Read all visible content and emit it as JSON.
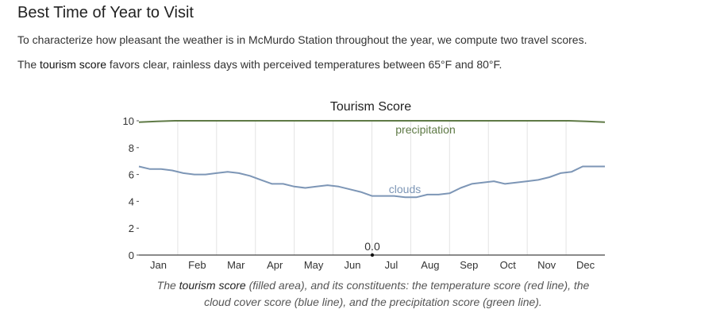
{
  "section": {
    "heading": "Best Time of Year to Visit",
    "p1": "To characterize how pleasant the weather is in McMurdo Station throughout the year, we compute two travel scores.",
    "p2_prefix": "The ",
    "p2_term": "tourism score",
    "p2_suffix": " favors clear, rainless days with perceived temperatures between 65°F and 80°F."
  },
  "caption": {
    "line1_prefix": "The ",
    "term": "tourism score",
    "line1_suffix": " (filled area), and its constituents: the temperature score (red line), the",
    "line2": "cloud cover score (blue line), and the precipitation score (green line)."
  },
  "chart_data": {
    "type": "line",
    "title": "Tourism Score",
    "xlabel": "",
    "ylabel": "",
    "ylim": [
      0,
      10
    ],
    "yticks": [
      "0",
      "2",
      "4",
      "6",
      "8",
      "10"
    ],
    "months": [
      "Jan",
      "Feb",
      "Mar",
      "Apr",
      "May",
      "Jun",
      "Jul",
      "Aug",
      "Sep",
      "Oct",
      "Nov",
      "Dec"
    ],
    "grid": "vertical",
    "series": [
      {
        "name": "precipitation",
        "color": "#5f7a46",
        "values": [
          9.9,
          9.95,
          10,
          10,
          10,
          10,
          10,
          10,
          10,
          10,
          10,
          10,
          10,
          10,
          10,
          10,
          10,
          10,
          10,
          10,
          10,
          10,
          10,
          10,
          10,
          9.95,
          9.9
        ]
      },
      {
        "name": "clouds",
        "color": "#7d96b6",
        "values": [
          6.6,
          6.4,
          6.4,
          6.3,
          6.1,
          6.0,
          6.0,
          6.1,
          6.2,
          6.1,
          5.9,
          5.6,
          5.3,
          5.3,
          5.1,
          5.0,
          5.1,
          5.2,
          5.1,
          4.9,
          4.7,
          4.4,
          4.4,
          4.4,
          4.3,
          4.3,
          4.5,
          4.5,
          4.6,
          5.0,
          5.3,
          5.4,
          5.5,
          5.3,
          5.4,
          5.5,
          5.6,
          5.8,
          6.1,
          6.2,
          6.6,
          6.6,
          6.6
        ]
      }
    ],
    "tourism_score": {
      "values": [
        0,
        0,
        0,
        0,
        0,
        0,
        0,
        0,
        0,
        0,
        0,
        0,
        0,
        0,
        0,
        0,
        0,
        0,
        0,
        0,
        0,
        0,
        0,
        0,
        0,
        0,
        0
      ],
      "annotation": "0.0"
    }
  }
}
